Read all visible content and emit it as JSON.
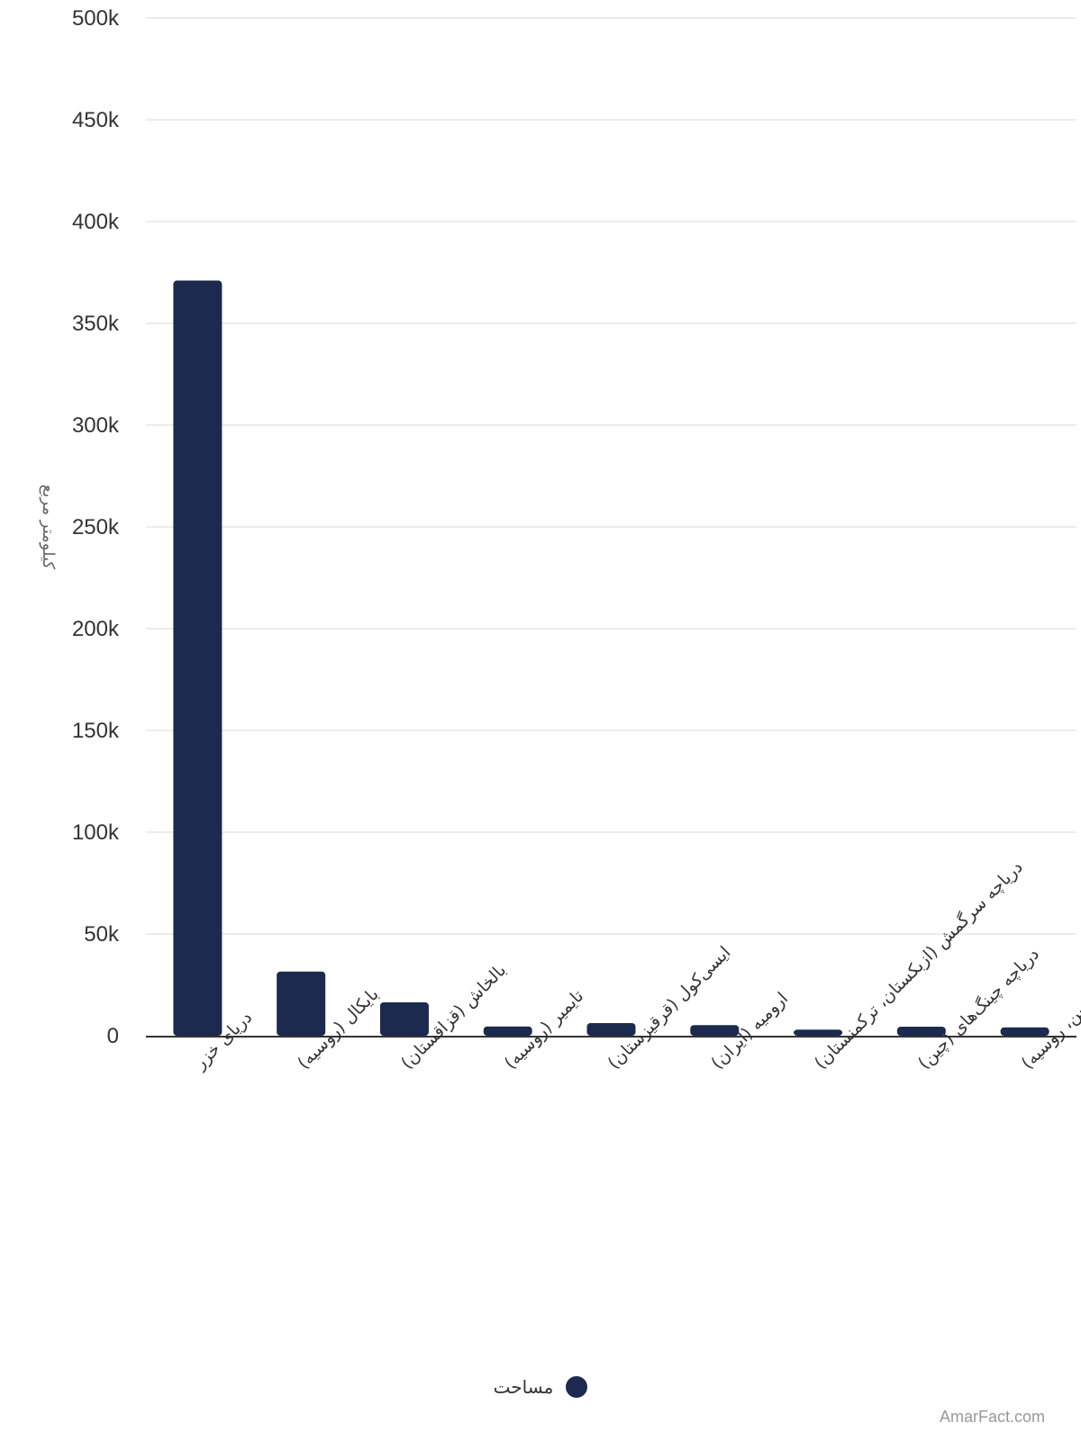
{
  "chart_data": {
    "type": "bar",
    "ylabel": "کیلومتر مربع",
    "ylim": [
      0,
      500000
    ],
    "yticks": [
      {
        "value": 0,
        "label": "0"
      },
      {
        "value": 50000,
        "label": "50k"
      },
      {
        "value": 100000,
        "label": "100k"
      },
      {
        "value": 150000,
        "label": "150k"
      },
      {
        "value": 200000,
        "label": "200k"
      },
      {
        "value": 250000,
        "label": "250k"
      },
      {
        "value": 300000,
        "label": "300k"
      },
      {
        "value": 350000,
        "label": "350k"
      },
      {
        "value": 400000,
        "label": "400k"
      },
      {
        "value": 450000,
        "label": "450k"
      },
      {
        "value": 500000,
        "label": "500k"
      }
    ],
    "categories": [
      "دریای خزر",
      "بایکال (روسیه)",
      "بالخاش (قزاقستان)",
      "تایمیر (روسیه)",
      "ایسی‌کول (قرقیزستان)",
      "ارومیه (ایران)",
      "دریاچه سرگمش (ازبکستان، ترکمنستان)",
      "دریاچه چینگ‌های (چین)",
      "خانکا (چین، روسیه)"
    ],
    "series": [
      {
        "name": "مساحت",
        "color": "#1b2a4e",
        "values": [
          371000,
          31500,
          16400,
          4560,
          6200,
          5200,
          3000,
          4400,
          4070
        ]
      }
    ],
    "grid": true,
    "legend_position": "bottom"
  },
  "legend": {
    "label": "مساحت",
    "color": "#1b2a4e"
  },
  "watermark": "AmarFact.com"
}
